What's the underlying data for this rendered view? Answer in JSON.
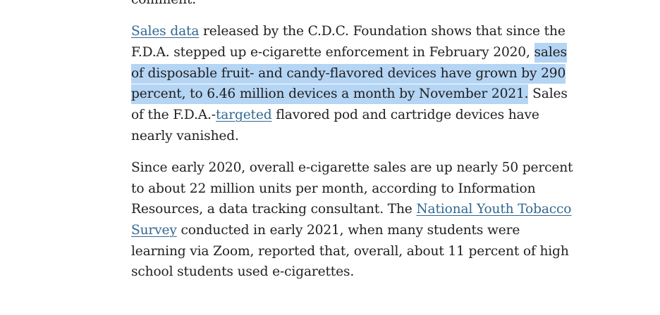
{
  "paragraph_prev": {
    "tail": "comment."
  },
  "paragraph1": {
    "link_sales_data": "Sales data",
    "line1_rest": " released by the C.D.C. Foundation shows that since the",
    "line2_plain": "F.D.A. stepped up e-cigarette enforcement in February 2020, ",
    "line2_highlight": "sales",
    "line3_highlight": "of disposable fruit- and candy-flavored devices have grown by 290",
    "line4_highlight": "percent, to 6.46 million devices a month by November 2021.",
    "line4_rest": " Sales",
    "line5_before": "of the F.D.A.-",
    "link_targeted": "targeted",
    "line5_after": " flavored pod and cartridge devices have",
    "line6": "nearly vanished."
  },
  "paragraph2": {
    "line1": "Since early 2020, overall e-cigarette sales are up nearly 50 percent",
    "line2": "to about 22 million units per month, according to Information",
    "line3_before": "Resources, a data tracking consultant. The ",
    "link_nyts_part1": "National Youth Tobacco",
    "link_nyts_part2": "Survey",
    "line4_after": " conducted in early 2021, when many students were",
    "line5": "learning via Zoom, reported that, overall, about 11 percent of high",
    "line6": "school students used e-cigarettes."
  },
  "colors": {
    "text": "#1f1f1f",
    "link": "#326891",
    "selection_highlight": "#b5d5f5",
    "background": "#ffffff"
  }
}
